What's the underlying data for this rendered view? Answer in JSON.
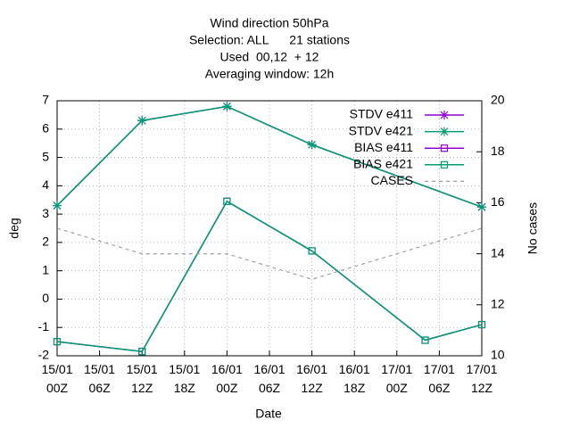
{
  "chart_data": {
    "type": "line",
    "title": [
      "Wind direction 50hPa",
      "Selection: ALL      21 stations",
      "Used  00,12  + 12",
      "Averaging window: 12h"
    ],
    "xlabel": "Date",
    "ylabel": "deg",
    "y2label": "No cases",
    "xlim": [
      0,
      60
    ],
    "xticks": [
      {
        "value": 0,
        "label": "15/01\n00Z"
      },
      {
        "value": 6,
        "label": "15/01\n06Z"
      },
      {
        "value": 12,
        "label": "15/01\n12Z"
      },
      {
        "value": 18,
        "label": "15/01\n18Z"
      },
      {
        "value": 24,
        "label": "16/01\n00Z"
      },
      {
        "value": 30,
        "label": "16/01\n06Z"
      },
      {
        "value": 36,
        "label": "16/01\n12Z"
      },
      {
        "value": 42,
        "label": "16/01\n18Z"
      },
      {
        "value": 48,
        "label": "17/01\n00Z"
      },
      {
        "value": 54,
        "label": "17/01\n06Z"
      },
      {
        "value": 60,
        "label": "17/01\n12Z"
      }
    ],
    "ylim": [
      -2,
      7
    ],
    "yticks": [
      -2,
      -1,
      0,
      1,
      2,
      3,
      4,
      5,
      6,
      7
    ],
    "y2lim": [
      10,
      20
    ],
    "y2ticks": [
      10,
      12,
      14,
      16,
      18,
      20
    ],
    "grid": true,
    "legend": "top-right",
    "series": [
      {
        "name": "STDV e411",
        "color": "#9400d3",
        "marker": "star",
        "x": [
          0,
          12,
          24,
          36,
          60
        ],
        "values": [
          3.3,
          6.3,
          6.8,
          5.45,
          3.25
        ]
      },
      {
        "name": "STDV e421",
        "color": "#009e73",
        "marker": "star",
        "x": [
          0,
          12,
          24,
          36,
          60
        ],
        "values": [
          3.3,
          6.3,
          6.8,
          5.45,
          3.25
        ]
      },
      {
        "name": "BIAS e411",
        "color": "#9400d3",
        "marker": "square",
        "x": [
          0,
          12,
          24,
          36,
          52,
          60
        ],
        "values": [
          -1.5,
          -1.85,
          3.45,
          1.7,
          -1.45,
          -0.9
        ]
      },
      {
        "name": "BIAS e421",
        "color": "#009e73",
        "marker": "square",
        "x": [
          0,
          12,
          24,
          36,
          52,
          60
        ],
        "values": [
          -1.5,
          -1.85,
          3.45,
          1.7,
          -1.45,
          -0.9
        ]
      },
      {
        "name": "CASES",
        "color": "#a0a0a0",
        "dash": true,
        "axis": "y2",
        "x": [
          0,
          12,
          24,
          36,
          48,
          60
        ],
        "values": [
          15,
          14,
          14,
          13,
          14,
          15
        ]
      }
    ]
  }
}
